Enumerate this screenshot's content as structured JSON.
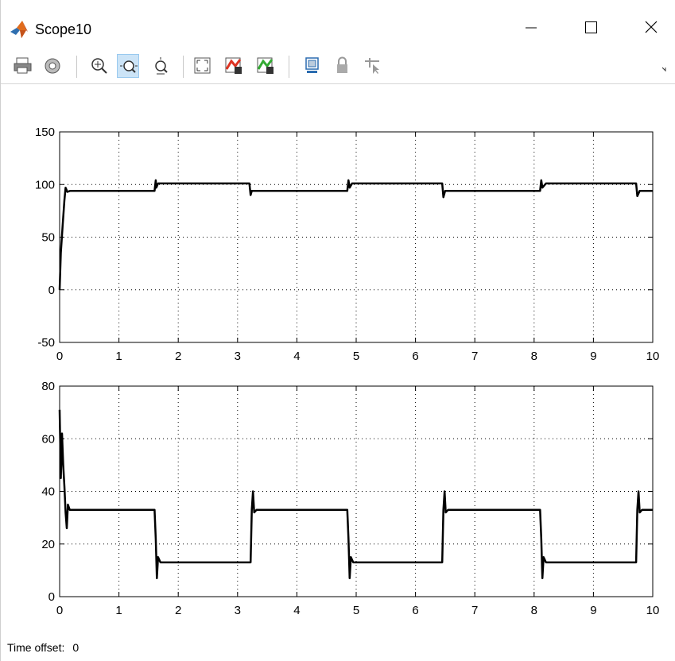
{
  "window": {
    "title": "Scope10",
    "controls": [
      "minimize",
      "maximize",
      "close"
    ]
  },
  "toolbar": {
    "buttons": [
      {
        "name": "print-icon"
      },
      {
        "name": "parameters-icon"
      },
      {
        "name": "zoom-in-icon"
      },
      {
        "name": "zoom-x-axis-icon",
        "active": true
      },
      {
        "name": "zoom-y-axis-icon"
      },
      {
        "name": "autoscale-icon"
      },
      {
        "name": "save-axes-settings-icon"
      },
      {
        "name": "restore-axes-settings-icon"
      },
      {
        "name": "floating-scope-icon"
      },
      {
        "name": "lock-axes-icon"
      },
      {
        "name": "signal-selection-icon"
      }
    ]
  },
  "status": {
    "label": "Time offset:",
    "value": "0"
  },
  "chart_data": [
    {
      "type": "line",
      "title": "",
      "xlabel": "",
      "ylabel": "",
      "xlim": [
        0,
        10
      ],
      "ylim": [
        -50,
        150
      ],
      "xticks": [
        "0",
        "1",
        "2",
        "3",
        "4",
        "5",
        "6",
        "7",
        "8",
        "9",
        "10"
      ],
      "yticks": [
        "-50",
        "0",
        "50",
        "100",
        "150"
      ],
      "grid": true,
      "series": [
        {
          "color": "#000000",
          "x": [
            0,
            0.02,
            0.05,
            0.08,
            0.1,
            0.13,
            0.18,
            0.3,
            1.6,
            1.62,
            1.63,
            1.66,
            1.7,
            3.2,
            3.22,
            3.24,
            3.3,
            4.85,
            4.87,
            4.89,
            4.93,
            6.45,
            6.47,
            6.5,
            6.55,
            8.1,
            8.12,
            8.14,
            8.2,
            9.72,
            9.74,
            9.78,
            9.85,
            10
          ],
          "y": [
            0,
            35,
            60,
            85,
            97,
            93,
            94,
            94,
            94,
            104,
            97,
            101,
            101,
            101,
            90,
            94,
            94,
            94,
            104,
            97,
            101,
            101,
            88,
            94,
            94,
            94,
            104,
            97,
            101,
            101,
            89,
            94,
            94,
            94
          ]
        }
      ]
    },
    {
      "type": "line",
      "title": "",
      "xlabel": "",
      "ylabel": "",
      "xlim": [
        0,
        10
      ],
      "ylim": [
        0,
        80
      ],
      "xticks": [
        "0",
        "1",
        "2",
        "3",
        "4",
        "5",
        "6",
        "7",
        "8",
        "9",
        "10"
      ],
      "yticks": [
        "0",
        "20",
        "40",
        "60",
        "80"
      ],
      "grid": true,
      "series": [
        {
          "color": "#000000",
          "x": [
            0,
            0.02,
            0.04,
            0.06,
            0.08,
            0.1,
            0.12,
            0.14,
            0.17,
            0.2,
            0.25,
            0.3,
            1.6,
            1.62,
            1.64,
            1.66,
            1.7,
            1.75,
            3.22,
            3.24,
            3.26,
            3.28,
            3.32,
            3.4,
            4.85,
            4.87,
            4.89,
            4.91,
            4.95,
            5.0,
            6.45,
            6.47,
            6.49,
            6.51,
            6.55,
            6.6,
            8.1,
            8.12,
            8.14,
            8.16,
            8.2,
            8.25,
            9.72,
            9.74,
            9.76,
            9.78,
            9.82,
            9.9,
            10
          ],
          "y": [
            71,
            45,
            62,
            50,
            42,
            32,
            26,
            35,
            33,
            33,
            33,
            33,
            33,
            22,
            7,
            15,
            13,
            13,
            13,
            33,
            40,
            32,
            33,
            33,
            33,
            22,
            7,
            15,
            13,
            13,
            13,
            33,
            40,
            32,
            33,
            33,
            33,
            22,
            7,
            15,
            13,
            13,
            13,
            33,
            40,
            32,
            33,
            33,
            33
          ]
        }
      ]
    }
  ]
}
